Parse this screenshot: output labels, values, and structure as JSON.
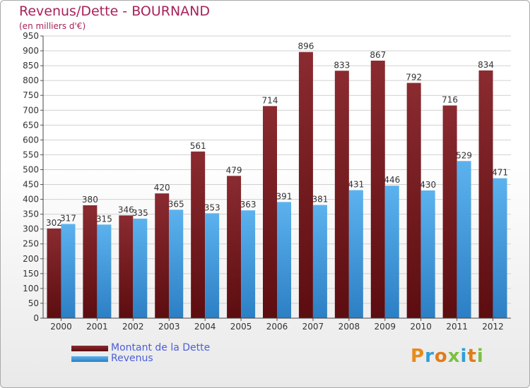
{
  "header": {
    "title": "Revenus/Dette - BOURNAND",
    "subtitle": "(en milliers d'€)"
  },
  "logo": {
    "text": "Proxiti"
  },
  "colors": {
    "dette": "#7a1a1e",
    "revenus": "#3d9be0",
    "grid": "#cccccc",
    "title": "#a8215a",
    "legend_text": "#4a5ed8"
  },
  "chart_data": {
    "type": "bar",
    "title": "Revenus/Dette - BOURNAND",
    "subtitle": "(en milliers d'€)",
    "xlabel": "",
    "ylabel": "",
    "ylim": [
      0,
      950
    ],
    "ytick_step": 50,
    "grid": true,
    "legend_position": "bottom-left",
    "categories": [
      "2000",
      "2001",
      "2002",
      "2003",
      "2004",
      "2005",
      "2006",
      "2007",
      "2008",
      "2009",
      "2010",
      "2011",
      "2012"
    ],
    "series": [
      {
        "name": "Montant de la Dette",
        "values": [
          302,
          380,
          346,
          420,
          561,
          479,
          714,
          896,
          833,
          867,
          792,
          716,
          834
        ]
      },
      {
        "name": "Revenus",
        "values": [
          317,
          315,
          335,
          365,
          353,
          363,
          391,
          381,
          431,
          446,
          430,
          529,
          471
        ]
      }
    ]
  }
}
